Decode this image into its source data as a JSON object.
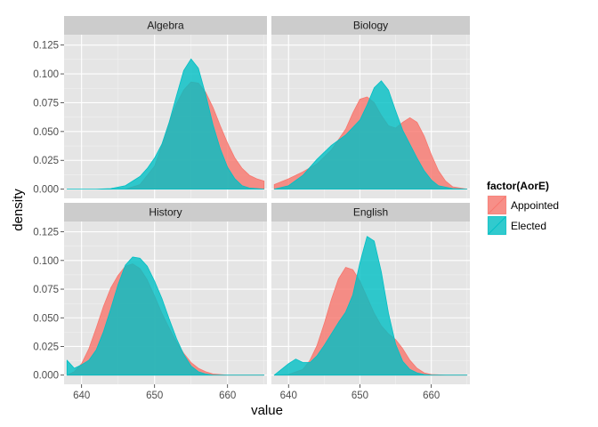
{
  "chart_data": {
    "type": "area",
    "subtype": "density",
    "xlabel": "value",
    "ylabel": "density",
    "xlim": [
      637.6,
      665.4
    ],
    "ylim": [
      -0.008,
      0.134
    ],
    "x_ticks": [
      640,
      650,
      660
    ],
    "y_ticks": [
      0.0,
      0.025,
      0.05,
      0.075,
      0.1,
      0.125
    ],
    "y_tick_labels": [
      "0.000",
      "0.025",
      "0.050",
      "0.075",
      "0.100",
      "0.125"
    ],
    "x_tick_labels": [
      "640",
      "650",
      "660"
    ],
    "grid": true,
    "facet_layout": [
      2,
      2
    ],
    "legend": {
      "title": "factor(AorE)",
      "placement": "right",
      "entries": [
        "Appointed",
        "Elected"
      ]
    },
    "colors": {
      "Appointed": "#F8766D",
      "Elected": "#00BFC4",
      "panel_background": "#E5E5E5",
      "strip_background": "#CCCCCC",
      "grid_major": "#FFFFFF",
      "grid_minor": "#F2F2F2"
    },
    "facets": [
      {
        "title": "Algebra",
        "series": [
          {
            "name": "Appointed",
            "x": [
              646,
              648,
              650,
              651,
              652,
              653,
              654,
              655,
              656,
              657,
              658,
              659,
              660,
              661,
              662,
              663,
              664,
              665
            ],
            "y": [
              0.0,
              0.004,
              0.02,
              0.038,
              0.058,
              0.074,
              0.086,
              0.093,
              0.092,
              0.084,
              0.071,
              0.055,
              0.04,
              0.027,
              0.018,
              0.012,
              0.009,
              0.007
            ]
          },
          {
            "name": "Elected",
            "x": [
              638,
              642,
              644,
              646,
              648,
              649,
              650,
              651,
              652,
              653,
              654,
              655,
              656,
              657,
              658,
              659,
              660,
              661,
              662,
              663,
              665
            ],
            "y": [
              0.0,
              0.0,
              0.0005,
              0.003,
              0.011,
              0.018,
              0.027,
              0.039,
              0.058,
              0.081,
              0.103,
              0.113,
              0.105,
              0.082,
              0.056,
              0.035,
              0.019,
              0.009,
              0.003,
              0.001,
              0.0
            ]
          }
        ]
      },
      {
        "title": "Biology",
        "series": [
          {
            "name": "Appointed",
            "x": [
              638,
              640,
              642,
              644,
              646,
              648,
              649,
              650,
              651,
              652,
              653,
              654,
              655,
              656,
              657,
              658,
              659,
              660,
              661,
              662,
              663,
              665
            ],
            "y": [
              0.004,
              0.009,
              0.015,
              0.022,
              0.034,
              0.052,
              0.066,
              0.078,
              0.08,
              0.075,
              0.064,
              0.055,
              0.053,
              0.058,
              0.062,
              0.058,
              0.046,
              0.03,
              0.016,
              0.007,
              0.002,
              0.0
            ]
          },
          {
            "name": "Elected",
            "x": [
              638,
              640,
              642,
              644,
              646,
              648,
              650,
              651,
              652,
              653,
              654,
              655,
              656,
              657,
              658,
              659,
              660,
              661,
              663,
              665
            ],
            "y": [
              0.0,
              0.003,
              0.012,
              0.026,
              0.038,
              0.047,
              0.06,
              0.073,
              0.088,
              0.094,
              0.086,
              0.068,
              0.051,
              0.039,
              0.027,
              0.016,
              0.008,
              0.003,
              0.0005,
              0.0
            ]
          }
        ]
      },
      {
        "title": "History",
        "series": [
          {
            "name": "Appointed",
            "x": [
              638,
              639,
              640,
              641,
              642,
              643,
              644,
              645,
              646,
              647,
              648,
              649,
              650,
              651,
              652,
              653,
              654,
              655,
              656,
              657,
              658,
              660,
              662,
              665
            ],
            "y": [
              0.0,
              0.003,
              0.01,
              0.023,
              0.041,
              0.06,
              0.076,
              0.087,
              0.095,
              0.097,
              0.093,
              0.083,
              0.069,
              0.054,
              0.041,
              0.029,
              0.019,
              0.011,
              0.006,
              0.003,
              0.001,
              0.0,
              0.0,
              0.0
            ]
          },
          {
            "name": "Elected",
            "x": [
              638,
              639,
              640,
              641,
              642,
              643,
              644,
              645,
              646,
              647,
              648,
              649,
              650,
              651,
              652,
              653,
              654,
              655,
              656,
              657,
              658,
              660,
              662,
              665
            ],
            "y": [
              0.013,
              0.006,
              0.009,
              0.013,
              0.022,
              0.038,
              0.058,
              0.079,
              0.096,
              0.103,
              0.102,
              0.095,
              0.082,
              0.067,
              0.049,
              0.032,
              0.018,
              0.008,
              0.003,
              0.001,
              0.0,
              0.0,
              0.0,
              0.0
            ]
          }
        ]
      },
      {
        "title": "English",
        "series": [
          {
            "name": "Appointed",
            "x": [
              638,
              640,
              642,
              643,
              644,
              645,
              646,
              647,
              648,
              649,
              650,
              651,
              652,
              653,
              654,
              655,
              656,
              657,
              658,
              659,
              660,
              662,
              665
            ],
            "y": [
              0.0,
              0.0005,
              0.005,
              0.013,
              0.026,
              0.045,
              0.066,
              0.084,
              0.094,
              0.092,
              0.082,
              0.068,
              0.054,
              0.043,
              0.036,
              0.031,
              0.023,
              0.013,
              0.006,
              0.002,
              0.0005,
              0.0,
              0.0
            ]
          },
          {
            "name": "Elected",
            "x": [
              638,
              640,
              641,
              642,
              643,
              644,
              645,
              646,
              647,
              648,
              649,
              650,
              651,
              652,
              653,
              654,
              655,
              656,
              657,
              658,
              659,
              660,
              662,
              665
            ],
            "y": [
              0.0,
              0.01,
              0.014,
              0.011,
              0.011,
              0.017,
              0.026,
              0.036,
              0.046,
              0.055,
              0.07,
              0.098,
              0.121,
              0.117,
              0.09,
              0.054,
              0.027,
              0.012,
              0.005,
              0.002,
              0.0005,
              0.0,
              0.0,
              0.0
            ]
          }
        ]
      }
    ]
  }
}
